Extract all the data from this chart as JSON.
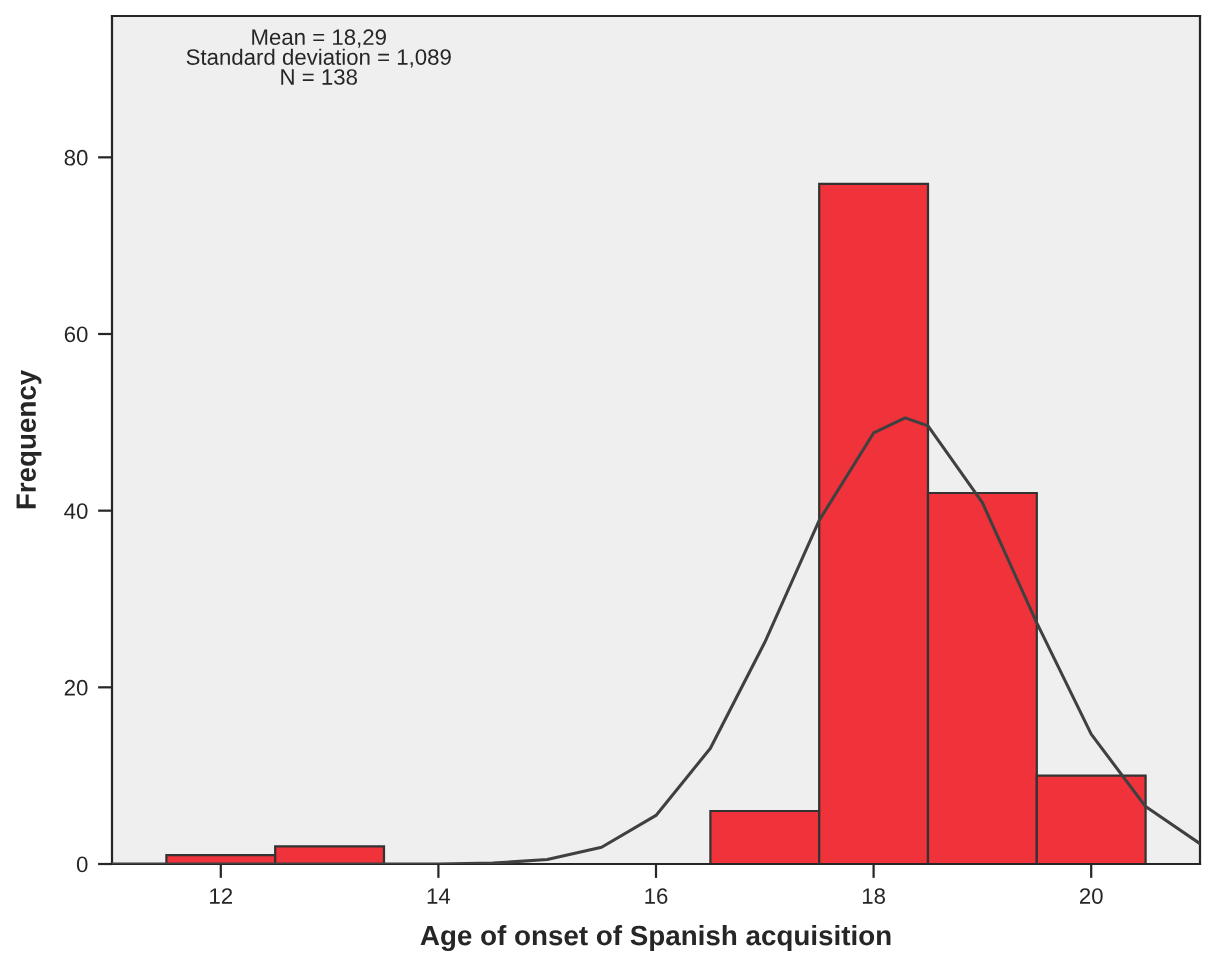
{
  "chart_data": {
    "type": "histogram",
    "xlabel": "Age of onset of Spanish acquisition",
    "ylabel": "Frequency",
    "bins": [
      11.5,
      12.5,
      13.5,
      14.5,
      15.5,
      16.5,
      17.5,
      18.5,
      19.5,
      20.5
    ],
    "values": [
      1,
      2,
      0,
      0,
      0,
      6,
      77,
      42,
      10
    ],
    "color": "#f0323a",
    "series": [
      {
        "type": "line",
        "color": "#404040",
        "x": [
          11,
          13,
          14,
          14.5,
          15,
          15.5,
          16,
          16.5,
          17,
          17.5,
          18,
          18.29,
          18.5,
          19,
          19.5,
          20,
          20.5,
          21
        ],
        "values": [
          0,
          0,
          0,
          0.1,
          0.5,
          1.9,
          5.5,
          13.1,
          25.1,
          38.9,
          48.8,
          50.5,
          49.6,
          40.9,
          27.3,
          14.7,
          6.5,
          2.3
        ]
      }
    ],
    "annotations": [
      "Mean = 18,29\nStandard deviation = 1,089\nN = 138"
    ],
    "xlim": [
      11,
      21
    ],
    "ylim": [
      0,
      96
    ],
    "xticks": [
      12,
      14,
      16,
      18,
      20
    ],
    "yticks": [
      0,
      20,
      40,
      60,
      80
    ],
    "grid": false
  }
}
